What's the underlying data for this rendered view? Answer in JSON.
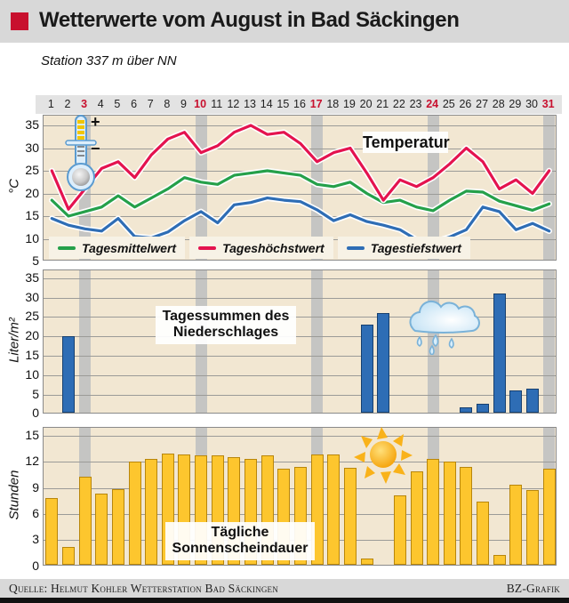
{
  "header": {
    "title": "Wetterwerte vom August in Bad Säckingen",
    "subtitle": "Station 337 m über NN",
    "accent_color": "#c8102e"
  },
  "day_axis": {
    "days": [
      1,
      2,
      3,
      4,
      5,
      6,
      7,
      8,
      9,
      10,
      11,
      12,
      13,
      14,
      15,
      16,
      17,
      18,
      19,
      20,
      21,
      22,
      23,
      24,
      25,
      26,
      27,
      28,
      29,
      30,
      31
    ],
    "highlight_days": [
      3,
      10,
      17,
      24,
      31
    ],
    "highlight_color": "#c8102e",
    "band_color": "#c5c5c3"
  },
  "chart_data": [
    {
      "type": "line",
      "title": "Temperatur",
      "ylabel": "°C",
      "ylim": [
        5,
        35
      ],
      "yticks": [
        35,
        30,
        25,
        20,
        15,
        10,
        5
      ],
      "gridlines": [
        35,
        30,
        25,
        20,
        15,
        10
      ],
      "legend_position": "bottom",
      "icon": "thermometer-icon",
      "series": [
        {
          "name": "Tagesmittelwert",
          "color": "#25a04a",
          "values": [
            18.5,
            15,
            16,
            17,
            19.5,
            17,
            19,
            21,
            23.5,
            22.5,
            22,
            24,
            24.5,
            25,
            24.5,
            24,
            22,
            21.5,
            22.5,
            20,
            18,
            18.5,
            17,
            16.2,
            18.5,
            20.5,
            20.3,
            18.3,
            17.3,
            16.3,
            17.7
          ]
        },
        {
          "name": "Tageshöchstwert",
          "color": "#e4134f",
          "values": [
            25,
            16.5,
            21,
            25.5,
            27,
            23.5,
            28.5,
            32,
            33.5,
            29,
            30.5,
            33.5,
            35,
            33,
            33.5,
            31,
            27,
            29,
            30,
            24.5,
            18.5,
            23,
            21.5,
            23.5,
            26.5,
            30,
            27,
            21,
            23,
            20,
            25
          ]
        },
        {
          "name": "Tagestiefstwert",
          "color": "#2e6db5",
          "values": [
            14.5,
            13,
            12.2,
            11.7,
            14.5,
            10.5,
            10.2,
            11.5,
            14,
            16,
            13.5,
            17.5,
            18,
            19,
            18.5,
            18.2,
            16.4,
            14,
            15.3,
            13.8,
            13,
            12,
            9.8,
            9.3,
            10.4,
            12,
            17,
            16,
            12,
            13.4,
            11.7
          ]
        }
      ]
    },
    {
      "type": "bar",
      "title": "Tagessummen des Niederschlages",
      "ylabel": "Liter/m²",
      "ylim": [
        0,
        35
      ],
      "yticks": [
        35,
        30,
        25,
        20,
        15,
        10,
        5,
        0
      ],
      "gridlines": [
        35,
        30,
        25,
        20,
        15,
        10,
        5
      ],
      "zero_line": "dashed",
      "icon": "rain-cloud-icon",
      "bar_color": "#2e6db5",
      "values": [
        0,
        20,
        0,
        0,
        0,
        0,
        0,
        0,
        0,
        0,
        0,
        0,
        0,
        0,
        0,
        0,
        0,
        0,
        0,
        23,
        26,
        0,
        0,
        0,
        0,
        1.7,
        2.7,
        31,
        6,
        6.5,
        0
      ]
    },
    {
      "type": "bar",
      "title": "Tägliche Sonnenscheindauer",
      "ylabel": "Stunden",
      "ylim": [
        0,
        15
      ],
      "yticks": [
        15,
        12,
        9,
        6,
        3,
        0
      ],
      "gridlines": [
        15,
        12,
        9,
        6,
        3
      ],
      "zero_line": "dashed",
      "icon": "sun-icon",
      "bar_color": "#fdc62e",
      "values": [
        7.8,
        2.2,
        10.3,
        8.4,
        8.9,
        12,
        12.3,
        13,
        12.9,
        12.8,
        12.8,
        12.5,
        12.3,
        12.8,
        11.2,
        11.4,
        12.9,
        12.9,
        11.3,
        0.9,
        0,
        8.2,
        10.9,
        12.3,
        12,
        11.4,
        7.4,
        1.3,
        9.4,
        8.8,
        11.2
      ]
    }
  ],
  "footer": {
    "source": "Quelle: Helmut Kohler Wetterstation Bad Säckingen",
    "credit": "BZ-Grafik"
  }
}
